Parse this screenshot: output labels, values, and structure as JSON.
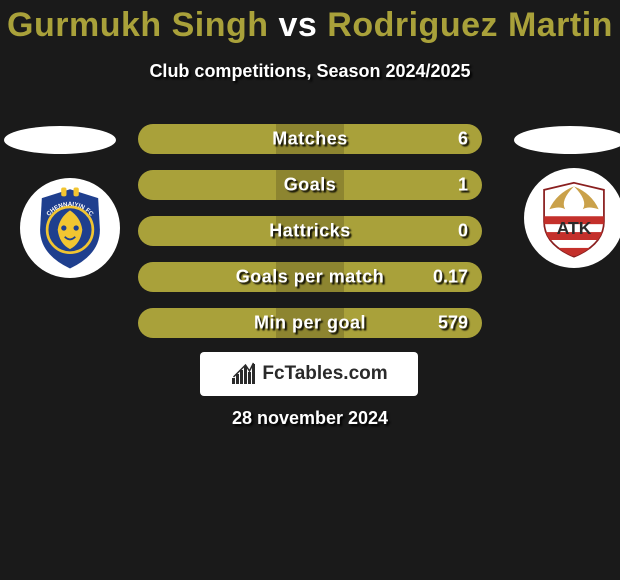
{
  "title": {
    "player1": "Gurmukh Singh",
    "vs": "vs",
    "player2": "Rodriguez Martin",
    "color_player": "#a9a13a",
    "color_vs": "#ffffff",
    "fontsize": 34
  },
  "subtitle": "Club competitions, Season 2024/2025",
  "bars": {
    "bg_color": "#a9a13a",
    "shade_color": "#8d8530",
    "text_color": "#ffffff",
    "items": [
      {
        "label": "Matches",
        "value": "6",
        "shade_left_pct": 40,
        "shade_width_pct": 20
      },
      {
        "label": "Goals",
        "value": "1",
        "shade_left_pct": 40,
        "shade_width_pct": 20
      },
      {
        "label": "Hattricks",
        "value": "0",
        "shade_left_pct": 40,
        "shade_width_pct": 20
      },
      {
        "label": "Goals per match",
        "value": "0.17",
        "shade_left_pct": 40,
        "shade_width_pct": 20
      },
      {
        "label": "Min per goal",
        "value": "579",
        "shade_left_pct": 40,
        "shade_width_pct": 20
      }
    ]
  },
  "logos": {
    "left": {
      "name": "chennaiyin-fc-logo",
      "primary": "#1f3f8e",
      "accent": "#f2c531",
      "text": "CHENNAIYIN FC"
    },
    "right": {
      "name": "atk-logo",
      "stripe_red": "#c4302b",
      "stripe_white": "#ffffff",
      "eagle": "#caa14a",
      "text": "ATK"
    }
  },
  "branding": {
    "text": "FcTables.com",
    "icon_color": "#2a2a2a",
    "chart_bars": [
      6,
      10,
      14,
      18,
      12,
      20
    ]
  },
  "date": "28 november 2024",
  "colors": {
    "background": "#1a1a1a"
  }
}
